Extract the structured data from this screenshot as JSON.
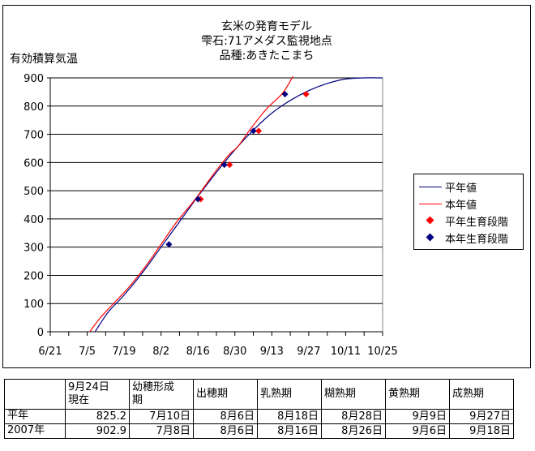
{
  "chart_data": {
    "type": "line",
    "title": [
      "玄米の発育モデル",
      "雫石:71アメダス監視地点",
      "品種:あきたこまち"
    ],
    "ylabel": "有効積算気温",
    "xlabel": "",
    "ylim": [
      0,
      900
    ],
    "yticks": [
      0,
      100,
      200,
      300,
      400,
      500,
      600,
      700,
      800,
      900
    ],
    "xdomain_days": [
      0,
      126
    ],
    "xticks": [
      {
        "day": 0,
        "label": "6/21"
      },
      {
        "day": 14,
        "label": "7/5"
      },
      {
        "day": 28,
        "label": "7/19"
      },
      {
        "day": 42,
        "label": "8/2"
      },
      {
        "day": 56,
        "label": "8/16"
      },
      {
        "day": 70,
        "label": "8/30"
      },
      {
        "day": 84,
        "label": "9/13"
      },
      {
        "day": 98,
        "label": "9/27"
      },
      {
        "day": 112,
        "label": "10/11"
      },
      {
        "day": 126,
        "label": "10/25"
      }
    ],
    "grid": "horizontal",
    "legend_position": "right",
    "series": [
      {
        "name": "平年値",
        "kind": "line",
        "color": "#000080",
        "points": [
          [
            17,
            0
          ],
          [
            22,
            70
          ],
          [
            28,
            130
          ],
          [
            35,
            210
          ],
          [
            42,
            300
          ],
          [
            49,
            390
          ],
          [
            56,
            480
          ],
          [
            63,
            565
          ],
          [
            70,
            645
          ],
          [
            77,
            715
          ],
          [
            84,
            775
          ],
          [
            91,
            820
          ],
          [
            98,
            855
          ],
          [
            105,
            880
          ],
          [
            112,
            896
          ],
          [
            119,
            900
          ],
          [
            126,
            900
          ]
        ]
      },
      {
        "name": "本年値",
        "kind": "line",
        "color": "#ff0000",
        "points": [
          [
            15,
            0
          ],
          [
            19,
            50
          ],
          [
            25,
            110
          ],
          [
            30,
            160
          ],
          [
            36,
            230
          ],
          [
            42,
            310
          ],
          [
            48,
            390
          ],
          [
            55,
            470
          ],
          [
            62,
            560
          ],
          [
            68,
            630
          ],
          [
            71,
            655
          ],
          [
            76,
            720
          ],
          [
            82,
            790
          ],
          [
            88,
            845
          ],
          [
            92,
            905
          ]
        ]
      },
      {
        "name": "平年生育段階",
        "kind": "marker",
        "color": "#ff0000",
        "points": [
          [
            57,
            470
          ],
          [
            68,
            592
          ],
          [
            79,
            712
          ],
          [
            97,
            842
          ]
        ]
      },
      {
        "name": "本年生育段階",
        "kind": "marker",
        "color": "#000080",
        "points": [
          [
            45,
            310
          ],
          [
            56,
            470
          ],
          [
            66,
            592
          ],
          [
            77,
            712
          ],
          [
            89,
            842
          ]
        ]
      }
    ]
  },
  "table": {
    "header": [
      "",
      "9月24日\n現在",
      "幼穂形成\n期",
      "出穂期",
      "乳熟期",
      "糊熟期",
      "黄熟期",
      "成熟期"
    ],
    "rows": [
      [
        "平年",
        "825.2",
        "7月10日",
        "8月6日",
        "8月18日",
        "8月28日",
        "9月9日",
        "9月27日"
      ],
      [
        "2007年",
        "902.9",
        "7月8日",
        "8月6日",
        "8月16日",
        "8月26日",
        "9月6日",
        "9月18日"
      ]
    ]
  }
}
